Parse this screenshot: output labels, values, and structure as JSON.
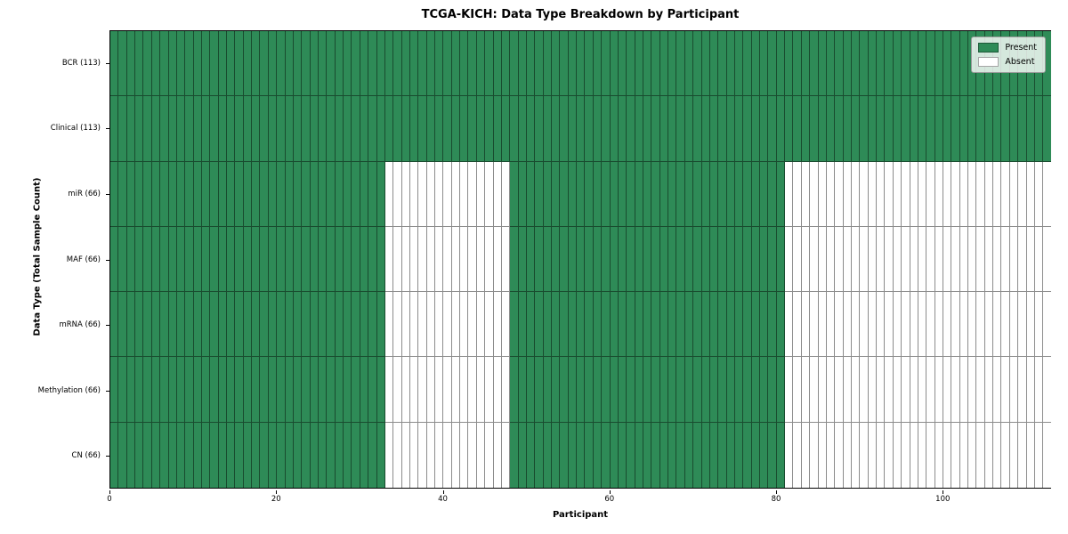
{
  "chart_data": {
    "type": "heatmap",
    "title": "TCGA-KICH: Data Type Breakdown by Participant",
    "xlabel": "Participant",
    "ylabel": "Data Type (Total Sample Count)",
    "n_participants": 113,
    "x_ticks": [
      0,
      20,
      40,
      60,
      80,
      100
    ],
    "xlim": [
      0,
      113
    ],
    "grid": false,
    "legend_position": "upper right",
    "rows": [
      {
        "label": "BCR (113)",
        "data_type": "BCR",
        "total_sample_count": 113,
        "present_ranges": [
          [
            0,
            113
          ]
        ]
      },
      {
        "label": "Clinical (113)",
        "data_type": "Clinical",
        "total_sample_count": 113,
        "present_ranges": [
          [
            0,
            113
          ]
        ]
      },
      {
        "label": "miR (66)",
        "data_type": "miR",
        "total_sample_count": 66,
        "present_ranges": [
          [
            0,
            33
          ],
          [
            48,
            81
          ]
        ]
      },
      {
        "label": "MAF (66)",
        "data_type": "MAF",
        "total_sample_count": 66,
        "present_ranges": [
          [
            0,
            33
          ],
          [
            48,
            81
          ]
        ]
      },
      {
        "label": "mRNA (66)",
        "data_type": "mRNA",
        "total_sample_count": 66,
        "present_ranges": [
          [
            0,
            33
          ],
          [
            48,
            81
          ]
        ]
      },
      {
        "label": "Methylation (66)",
        "data_type": "Methylation",
        "total_sample_count": 66,
        "present_ranges": [
          [
            0,
            33
          ],
          [
            48,
            81
          ]
        ]
      },
      {
        "label": "CN (66)",
        "data_type": "CN",
        "total_sample_count": 66,
        "present_ranges": [
          [
            0,
            33
          ],
          [
            48,
            81
          ]
        ]
      }
    ],
    "legend": [
      {
        "label": "Present",
        "color": "#2e8b57"
      },
      {
        "label": "Absent",
        "color": "#ffffff"
      }
    ],
    "colors": {
      "present": "#2e8b57",
      "absent": "#ffffff",
      "cell_edge": "rgba(0,0,0,0.45)",
      "plot_border": "#000000"
    }
  }
}
